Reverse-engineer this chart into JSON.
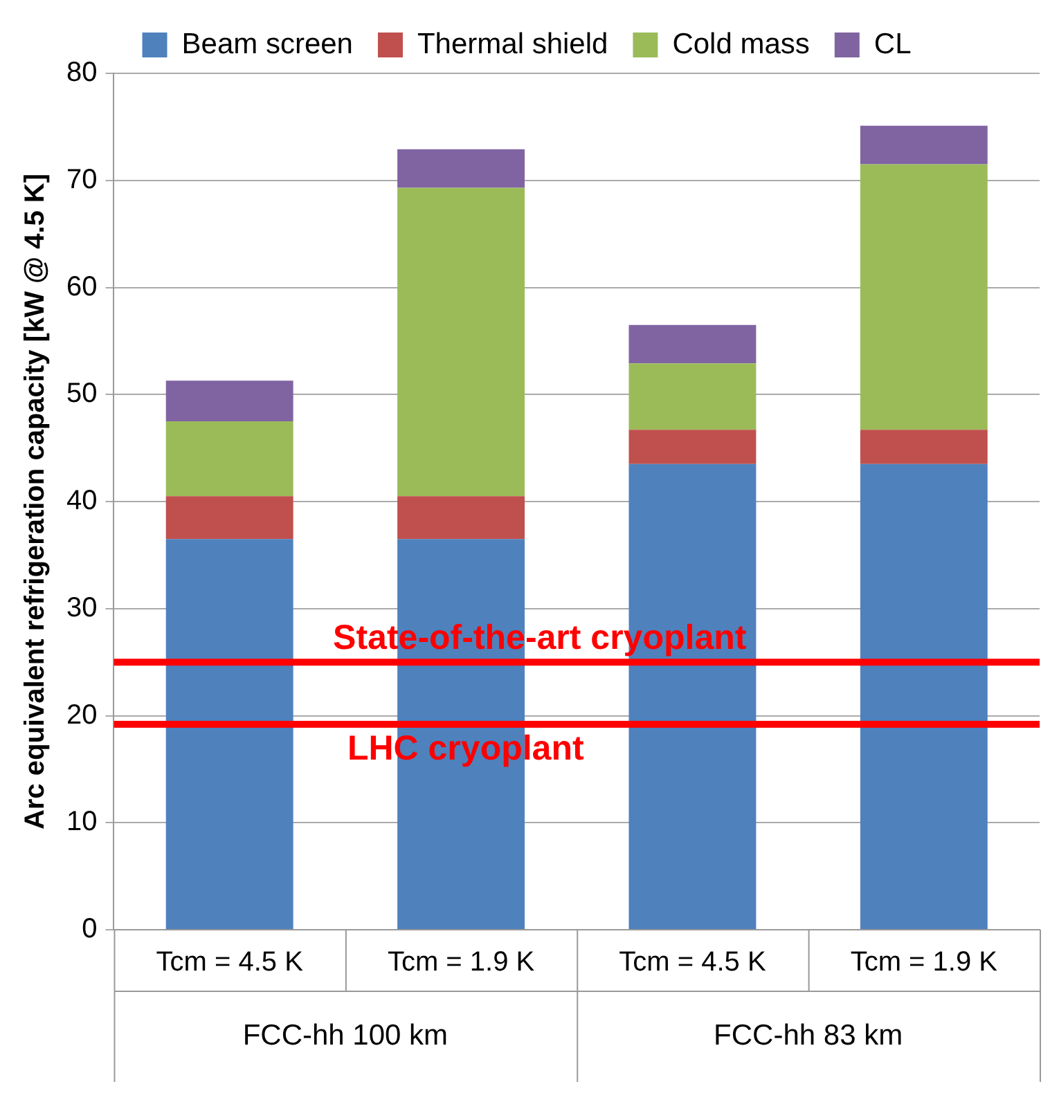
{
  "chart_data": {
    "type": "bar",
    "stacked": true,
    "categories": [
      "Tcm = 4.5 K",
      "Tcm = 1.9 K",
      "Tcm = 4.5 K",
      "Tcm = 1.9 K"
    ],
    "series": [
      {
        "name": "Beam screen",
        "color": "#4f81bd",
        "values": [
          36.5,
          36.5,
          43.5,
          43.5
        ]
      },
      {
        "name": "Thermal shield",
        "color": "#c0504d",
        "values": [
          4,
          4,
          3.2,
          3.2
        ]
      },
      {
        "name": "Cold mass",
        "color": "#9bbb59",
        "values": [
          7,
          28.8,
          6.2,
          24.8
        ]
      },
      {
        "name": "CL",
        "color": "#8064a2",
        "values": [
          3.8,
          3.6,
          3.6,
          3.6
        ]
      }
    ],
    "ylabel": "Arc equivalent refrigeration capacity [kW @ 4.5 K]",
    "ylim": [
      0,
      80
    ],
    "yticks": [
      0,
      10,
      20,
      30,
      40,
      50,
      60,
      70,
      80
    ],
    "grid": "y",
    "legend": "top",
    "ref_lines": [
      {
        "axis": "y",
        "value": 25,
        "label": "State-of-the-art cryoplant",
        "color": "#ff0000"
      },
      {
        "axis": "y",
        "value": 19.2,
        "label": "LHC cryoplant",
        "color": "#ff0000"
      }
    ],
    "annotations": [
      "FCC-hh 100 km",
      "FCC-hh 83 km"
    ]
  }
}
